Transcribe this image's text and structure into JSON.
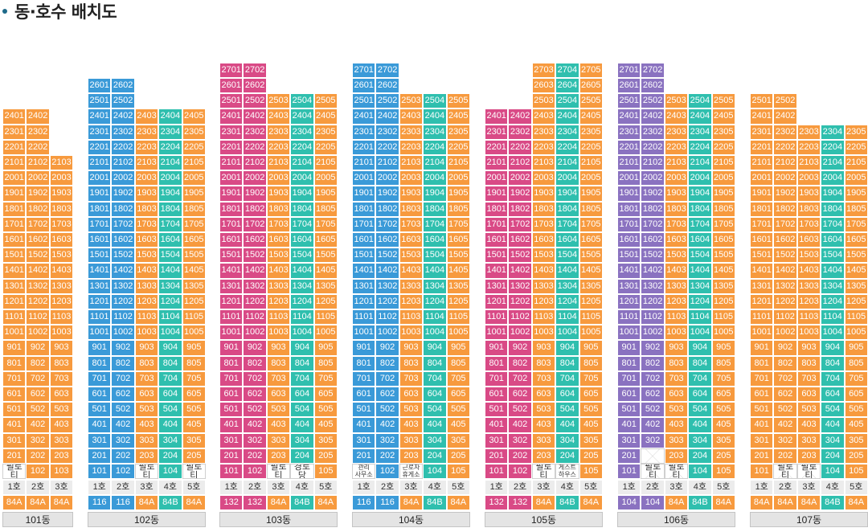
{
  "title": "동·호수 배치도",
  "colors": {
    "orange": "#f79a3e",
    "blue": "#3a9ad8",
    "teal": "#2fbfae",
    "pink": "#d94a86",
    "purple": "#8a72c0",
    "line_bg": "#ececec",
    "dong_bg": "#e4e4e4"
  },
  "buildings": [
    {
      "name": "101동",
      "lines": [
        {
          "line": "1호",
          "type": "84A",
          "color": "orange",
          "top": 24,
          "ground": "필로티"
        },
        {
          "line": "2호",
          "type": "84A",
          "color": "orange",
          "top": 24
        },
        {
          "line": "3호",
          "type": "84A",
          "color": "orange",
          "top": 21
        }
      ]
    },
    {
      "name": "102동",
      "lines": [
        {
          "line": "1호",
          "type": "116",
          "color": "blue",
          "top": 26
        },
        {
          "line": "2호",
          "type": "116",
          "color": "blue",
          "top": 26
        },
        {
          "line": "3호",
          "type": "84A",
          "color": "orange",
          "top": 24,
          "ground": "필로티"
        },
        {
          "line": "4호",
          "type": "84B",
          "color": "teal",
          "top": 24
        },
        {
          "line": "5호",
          "type": "84A",
          "color": "orange",
          "top": 24,
          "ground": "필로티"
        }
      ]
    },
    {
      "name": "103동",
      "lines": [
        {
          "line": "1호",
          "type": "132",
          "color": "pink",
          "top": 27
        },
        {
          "line": "2호",
          "type": "132",
          "color": "pink",
          "top": 27
        },
        {
          "line": "3호",
          "type": "84A",
          "color": "orange",
          "top": 25,
          "ground": "필로티"
        },
        {
          "line": "4호",
          "type": "84B",
          "color": "teal",
          "top": 25,
          "ground": "경로당"
        },
        {
          "line": "5호",
          "type": "84A",
          "color": "orange",
          "top": 25
        }
      ]
    },
    {
      "name": "104동",
      "lines": [
        {
          "line": "1호",
          "type": "116",
          "color": "blue",
          "top": 27,
          "ground": "관리\n사무소"
        },
        {
          "line": "2호",
          "type": "116",
          "color": "blue",
          "top": 27
        },
        {
          "line": "3호",
          "type": "84A",
          "color": "orange",
          "top": 25,
          "ground": "근로자\n휴게소"
        },
        {
          "line": "4호",
          "type": "84B",
          "color": "teal",
          "top": 25
        },
        {
          "line": "5호",
          "type": "84A",
          "color": "orange",
          "top": 25
        }
      ]
    },
    {
      "name": "105동",
      "lines": [
        {
          "line": "1호",
          "type": "132",
          "color": "pink",
          "top": 24
        },
        {
          "line": "2호",
          "type": "132",
          "color": "pink",
          "top": 24
        },
        {
          "line": "3호",
          "type": "84A",
          "color": "orange",
          "top": 27,
          "ground": "필로티"
        },
        {
          "line": "4호",
          "type": "84B",
          "color": "teal",
          "top": 27,
          "ground": "게스트\n하우스"
        },
        {
          "line": "5호",
          "type": "84A",
          "color": "orange",
          "top": 27
        }
      ]
    },
    {
      "name": "106동",
      "lines": [
        {
          "line": "1호",
          "type": "104",
          "color": "purple",
          "top": 27
        },
        {
          "line": "2호",
          "type": "104",
          "color": "purple",
          "top": 27,
          "ground": "필로티",
          "ground_style": "x",
          "no201": true
        },
        {
          "line": "3호",
          "type": "84A",
          "color": "orange",
          "top": 25,
          "ground": "필로티",
          "ground_style": "x"
        },
        {
          "line": "4호",
          "type": "84B",
          "color": "teal",
          "top": 25
        },
        {
          "line": "5호",
          "type": "84A",
          "color": "orange",
          "top": 25
        }
      ]
    },
    {
      "name": "107동",
      "lines": [
        {
          "line": "1호",
          "type": "84A",
          "color": "orange",
          "top": 25
        },
        {
          "line": "2호",
          "type": "84A",
          "color": "orange",
          "top": 25,
          "ground": "필로티",
          "ground_style": "x"
        },
        {
          "line": "3호",
          "type": "84A",
          "color": "orange",
          "top": 23,
          "ground": "필로티",
          "ground_style": "x"
        },
        {
          "line": "4호",
          "type": "84B",
          "color": "teal",
          "top": 23
        },
        {
          "line": "5호",
          "type": "84A",
          "color": "orange",
          "top": 23
        }
      ]
    }
  ]
}
